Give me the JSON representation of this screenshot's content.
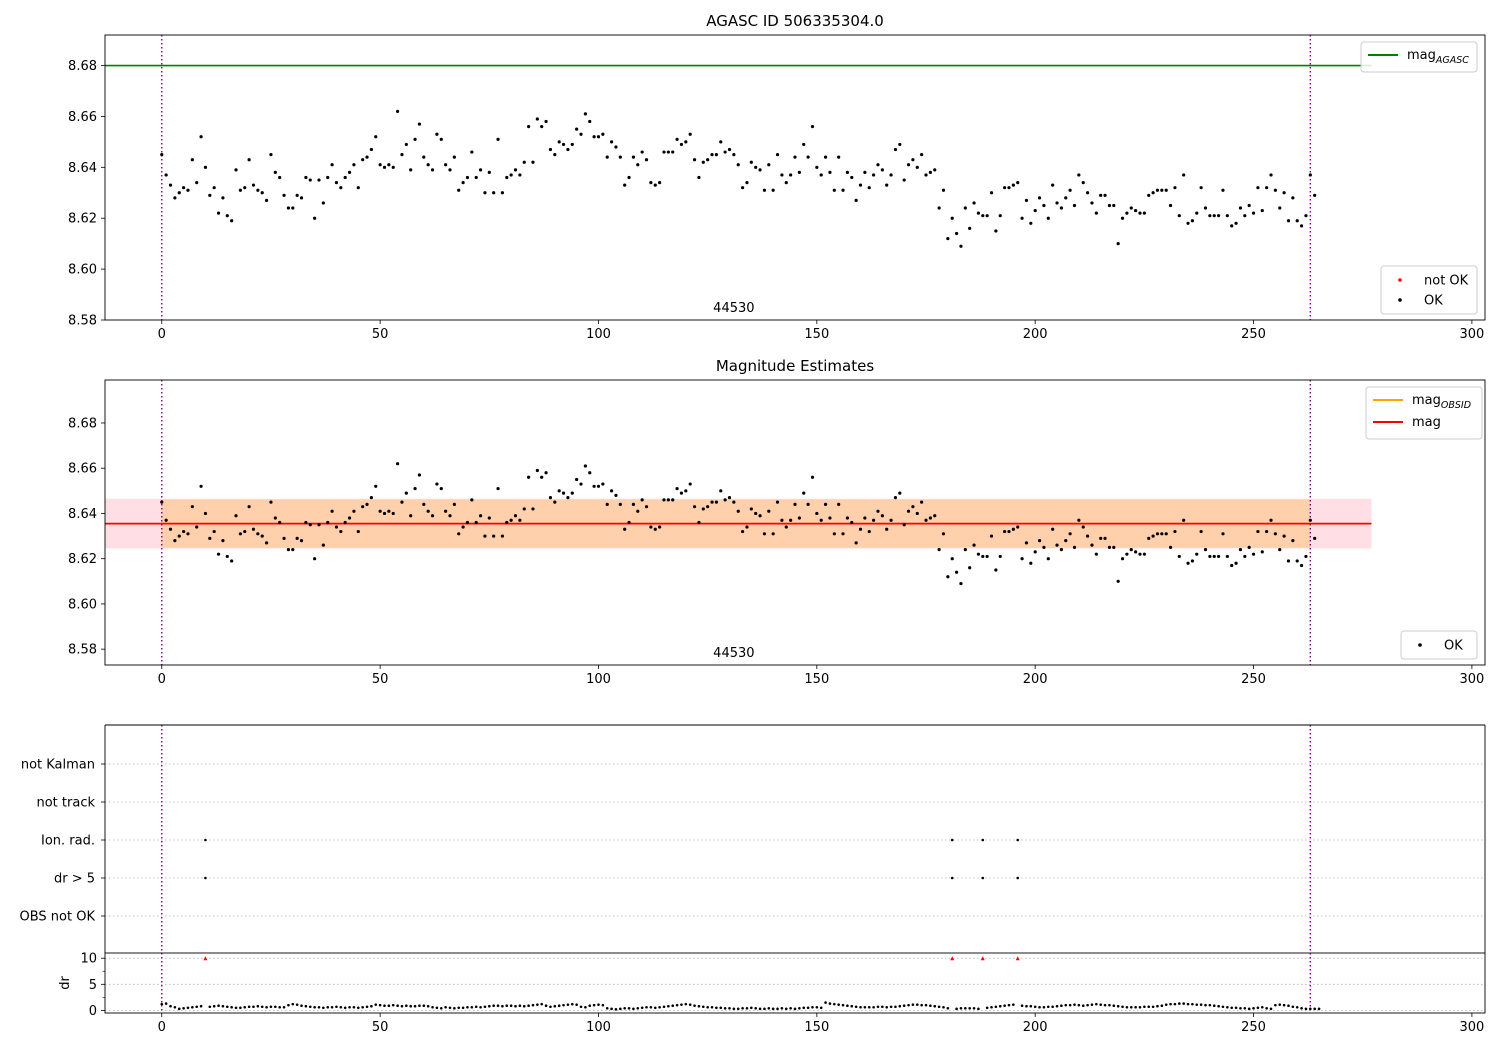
{
  "chart_data": [
    {
      "type": "scatter",
      "title": "AGASC ID 506335304.0",
      "xlim": [
        -13,
        303
      ],
      "ylim": [
        8.58,
        8.692
      ],
      "xticks": [
        0,
        50,
        100,
        150,
        200,
        250,
        300
      ],
      "yticks": [
        8.58,
        8.6,
        8.62,
        8.64,
        8.66,
        8.68
      ],
      "ytick_format": 2,
      "obsid_label": "44530",
      "obsid_label_x": 131,
      "vlines": [
        0,
        263
      ],
      "hlines": [
        {
          "name": "mag",
          "sub": "AGASC",
          "y": 8.68,
          "x_end": 277,
          "color": "#008000"
        }
      ],
      "line_legend_position": "top-right",
      "point_legend": [
        {
          "label": "not OK",
          "color": "#ff0000"
        },
        {
          "label": "OK",
          "color": "#000000"
        }
      ],
      "point_legend_position": "bottom-right",
      "series": [
        {
          "name": "OK",
          "color": "#000000",
          "source": "mag_points"
        }
      ]
    },
    {
      "type": "scatter",
      "title": "Magnitude Estimates",
      "xlim": [
        -13,
        303
      ],
      "ylim": [
        8.573,
        8.699
      ],
      "xticks": [
        0,
        50,
        100,
        150,
        200,
        250,
        300
      ],
      "yticks": [
        8.58,
        8.6,
        8.62,
        8.64,
        8.66,
        8.68
      ],
      "ytick_format": 2,
      "obsid_label": "44530",
      "obsid_label_x": 131,
      "vlines": [
        0,
        263
      ],
      "bands": [
        {
          "y0": 8.6245,
          "y1": 8.6465,
          "x0": -13,
          "x1": 277,
          "color": "#ffc0cb",
          "opacity": 0.5
        },
        {
          "y0": 8.6248,
          "y1": 8.6462,
          "x0": 0,
          "x1": 263,
          "color": "#ffa500",
          "opacity": 0.25
        }
      ],
      "hlines": [
        {
          "name": "mag",
          "y": 8.6355,
          "x_start": -13,
          "x_end": 277,
          "color": "#ff0000"
        }
      ],
      "line_legend": [
        {
          "name": "mag",
          "sub": "OBSID",
          "color": "#ffa500"
        },
        {
          "name": "mag",
          "sub": "",
          "color": "#ff0000"
        }
      ],
      "line_legend_position": "top-right",
      "point_legend": [
        {
          "label": "OK",
          "color": "#000000"
        }
      ],
      "point_legend_position": "bottom-right",
      "series": [
        {
          "name": "OK",
          "color": "#000000",
          "source": "mag_points"
        }
      ]
    },
    {
      "type": "scatter",
      "xlim": [
        -13,
        303
      ],
      "categories": [
        "OBS not OK",
        "dr > 5",
        "Ion. rad.",
        "not track",
        "not Kalman"
      ],
      "vlines": [
        0,
        263
      ],
      "flags": {
        "dr > 5": [
          10,
          181,
          188,
          196
        ],
        "Ion. rad.": [
          10,
          181,
          188,
          196
        ]
      }
    },
    {
      "type": "scatter",
      "xlim": [
        -13,
        303
      ],
      "xticks": [
        0,
        50,
        100,
        150,
        200,
        250,
        300
      ],
      "ylim": [
        -0.5,
        11
      ],
      "yticks": [
        0,
        5,
        10
      ],
      "ylabel": "dr",
      "vlines": [
        0,
        263
      ],
      "outliers_clipped": [
        10,
        181,
        188,
        196
      ],
      "outlier_y": 10,
      "outlier_color": "#ff0000",
      "series": [
        {
          "name": "dr",
          "color": "#000000",
          "source": "dr_points"
        }
      ]
    }
  ],
  "mag_points": [
    8.645,
    8.637,
    8.633,
    8.628,
    8.63,
    8.632,
    8.631,
    8.643,
    8.634,
    8.652,
    8.64,
    8.629,
    8.632,
    8.622,
    8.628,
    8.621,
    8.619,
    8.639,
    8.631,
    8.632,
    8.643,
    8.633,
    8.631,
    8.63,
    8.627,
    8.645,
    8.638,
    8.636,
    8.629,
    8.624,
    8.624,
    8.629,
    8.628,
    8.636,
    8.635,
    8.62,
    8.635,
    8.626,
    8.636,
    8.641,
    8.634,
    8.632,
    8.636,
    8.638,
    8.641,
    8.632,
    8.643,
    8.644,
    8.647,
    8.652,
    8.641,
    8.64,
    8.641,
    8.64,
    8.662,
    8.645,
    8.649,
    8.639,
    8.651,
    8.657,
    8.644,
    8.641,
    8.639,
    8.653,
    8.651,
    8.641,
    8.639,
    8.644,
    8.631,
    8.634,
    8.636,
    8.646,
    8.636,
    8.639,
    8.63,
    8.638,
    8.63,
    8.651,
    8.63,
    8.636,
    8.637,
    8.639,
    8.637,
    8.642,
    8.656,
    8.642,
    8.659,
    8.656,
    8.658,
    8.647,
    8.645,
    8.65,
    8.649,
    8.647,
    8.649,
    8.655,
    8.653,
    8.661,
    8.658,
    8.652,
    8.652,
    8.653,
    8.644,
    8.65,
    8.648,
    8.644,
    8.633,
    8.636,
    8.644,
    8.641,
    8.646,
    8.643,
    8.634,
    8.633,
    8.634,
    8.646,
    8.646,
    8.646,
    8.651,
    8.649,
    8.65,
    8.653,
    8.643,
    8.636,
    8.642,
    8.643,
    8.645,
    8.645,
    8.65,
    8.646,
    8.647,
    8.645,
    8.641,
    8.632,
    8.634,
    8.642,
    8.64,
    8.639,
    8.631,
    8.641,
    8.631,
    8.645,
    8.637,
    8.634,
    8.637,
    8.644,
    8.638,
    8.649,
    8.644,
    8.656,
    8.64,
    8.637,
    8.644,
    8.638,
    8.631,
    8.644,
    8.631,
    8.638,
    8.636,
    8.627,
    8.633,
    8.638,
    8.632,
    8.637,
    8.641,
    8.639,
    8.633,
    8.637,
    8.647,
    8.649,
    8.635,
    8.641,
    8.643,
    8.64,
    8.645,
    8.637,
    8.638,
    8.639,
    8.624,
    8.631,
    8.612,
    8.62,
    8.614,
    8.609,
    8.624,
    8.616,
    8.626,
    8.622,
    8.621,
    8.621,
    8.63,
    8.615,
    8.621,
    8.632,
    8.632,
    8.633,
    8.634,
    8.62,
    8.627,
    8.618,
    8.623,
    8.628,
    8.625,
    8.62,
    8.633,
    8.626,
    8.624,
    8.628,
    8.631,
    8.625,
    8.637,
    8.634,
    8.63,
    8.626,
    8.622,
    8.629,
    8.629,
    8.625,
    8.625,
    8.61,
    8.62,
    8.622,
    8.624,
    8.623,
    8.622,
    8.622,
    8.629,
    8.63,
    8.631,
    8.631,
    8.631,
    8.625,
    8.632,
    8.621,
    8.637,
    8.618,
    8.619,
    8.622,
    8.632,
    8.624,
    8.621,
    8.621,
    8.621,
    8.631,
    8.621,
    8.617,
    8.618,
    8.624,
    8.621,
    8.625,
    8.622,
    8.632,
    8.623,
    8.632,
    8.637,
    8.631,
    8.624,
    8.63,
    8.619,
    8.628,
    8.619,
    8.617,
    8.621,
    8.637,
    8.629
  ],
  "dr_points": [
    1.2,
    1.3,
    0.8,
    0.6,
    0.3,
    0.4,
    0.5,
    0.6,
    0.7,
    0.8,
    0.9,
    0.7,
    0.8,
    0.9,
    0.8,
    0.7,
    0.6,
    0.5,
    0.5,
    0.6,
    0.7,
    0.7,
    0.8,
    0.7,
    0.6,
    0.7,
    0.7,
    0.6,
    0.6,
    1.0,
    1.2,
    1.1,
    0.9,
    0.8,
    0.7,
    0.6,
    0.6,
    0.5,
    0.6,
    0.6,
    0.7,
    0.6,
    0.5,
    0.6,
    0.6,
    0.5,
    0.6,
    0.7,
    0.8,
    1.1,
    1.0,
    0.9,
    0.9,
    1.0,
    0.9,
    0.8,
    0.9,
    0.8,
    0.8,
    0.9,
    0.9,
    0.8,
    0.6,
    0.5,
    0.4,
    0.6,
    0.5,
    0.4,
    0.5,
    0.5,
    0.6,
    0.6,
    0.7,
    0.6,
    0.7,
    0.8,
    0.9,
    0.9,
    0.8,
    0.9,
    0.9,
    0.8,
    0.9,
    0.8,
    0.9,
    1.0,
    1.1,
    1.2,
    0.9,
    0.7,
    0.8,
    0.9,
    1.0,
    1.1,
    1.2,
    1.1,
    0.7,
    0.6,
    0.9,
    1.0,
    1.1,
    1.0,
    0.4,
    0.3,
    0.2,
    0.3,
    0.4,
    0.4,
    0.3,
    0.4,
    0.5,
    0.6,
    0.6,
    0.5,
    0.6,
    0.7,
    0.8,
    0.9,
    1.0,
    1.1,
    1.2,
    1.1,
    0.9,
    0.8,
    0.7,
    0.6,
    0.6,
    0.5,
    0.5,
    0.4,
    0.4,
    0.3,
    0.3,
    0.4,
    0.4,
    0.5,
    0.4,
    0.3,
    0.3,
    0.4,
    0.3,
    0.3,
    0.4,
    0.3,
    0.4,
    0.3,
    0.4,
    0.5,
    0.5,
    0.6,
    0.6,
    0.5,
    1.5,
    1.3,
    1.2,
    1.1,
    1.0,
    0.9,
    0.8,
    0.7,
    0.6,
    0.6,
    0.6,
    0.6,
    0.7,
    0.7,
    0.6,
    0.7,
    0.7,
    0.8,
    0.9,
    1.0,
    1.1,
    1.1,
    1.0,
    1.0,
    0.9,
    0.8,
    0.7,
    0.6,
    0.4,
    0.3,
    0.3,
    0.4,
    0.4,
    0.4,
    0.4,
    0.3,
    0.3,
    0.5,
    0.6,
    0.7,
    0.8,
    0.9,
    1.0,
    1.1,
    1.0,
    0.9,
    0.8,
    0.8,
    0.7,
    0.6,
    0.6,
    0.7,
    0.7,
    0.8,
    0.9,
    1.0,
    1.0,
    1.1,
    1.0,
    0.9,
    1.0,
    1.1,
    1.2,
    1.1,
    1.0,
    1.0,
    0.9,
    0.8,
    0.7,
    0.6,
    0.6,
    0.6,
    0.6,
    0.7,
    0.7,
    0.7,
    0.8,
    0.9,
    1.1,
    1.2,
    1.2,
    1.3,
    1.3,
    1.2,
    1.2,
    1.1,
    1.1,
    1.0,
    1.0,
    0.9,
    0.8,
    0.7,
    0.6,
    0.5,
    0.5,
    0.4,
    0.4,
    0.3,
    0.4,
    0.5,
    0.6,
    0.4,
    0.3,
    1.0,
    1.1,
    1.0,
    0.9,
    0.7,
    0.6,
    0.4,
    0.3,
    0.3,
    0.3,
    0.3
  ]
}
